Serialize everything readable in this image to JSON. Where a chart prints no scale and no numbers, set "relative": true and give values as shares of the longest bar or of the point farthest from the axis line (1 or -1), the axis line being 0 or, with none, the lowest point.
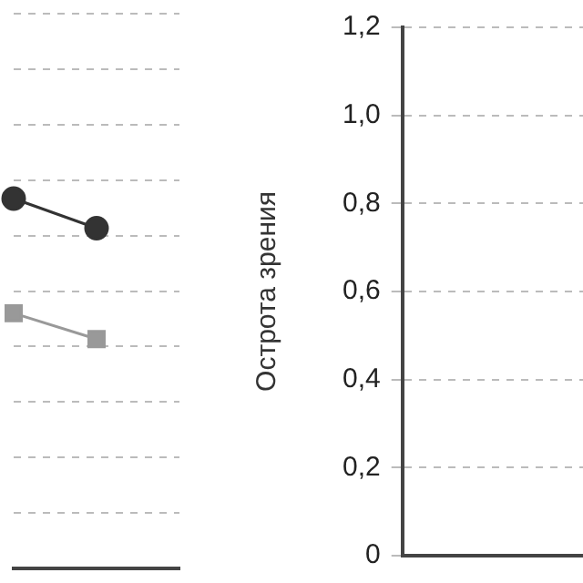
{
  "chart_data": [
    {
      "type": "line",
      "relative": true,
      "categories": [
        null,
        null,
        null
      ],
      "grid": "y",
      "tick_labels": false,
      "series": [
        {
          "color": "#333333",
          "marker": "circle",
          "values": [
            1,
            0.92,
            null
          ]
        },
        {
          "color": "#999999",
          "marker": "square",
          "values": [
            0.69,
            0.62,
            null
          ]
        }
      ]
    },
    {
      "type": "line",
      "ylabel": "Острота зрения",
      "categories": [
        null
      ],
      "grid": "y",
      "tick_labels": "y",
      "ylim": [
        0,
        1.2
      ],
      "yticks": [
        0,
        {
          "value": 0.2,
          "label": "0,2"
        },
        {
          "value": 0.4,
          "label": "0,4"
        },
        {
          "value": 0.6,
          "label": "0,6"
        },
        {
          "value": 0.8,
          "label": "0,8"
        },
        {
          "value": 1.0,
          "label": "1,0"
        },
        {
          "value": 1.2,
          "label": "1,2"
        }
      ]
    }
  ]
}
